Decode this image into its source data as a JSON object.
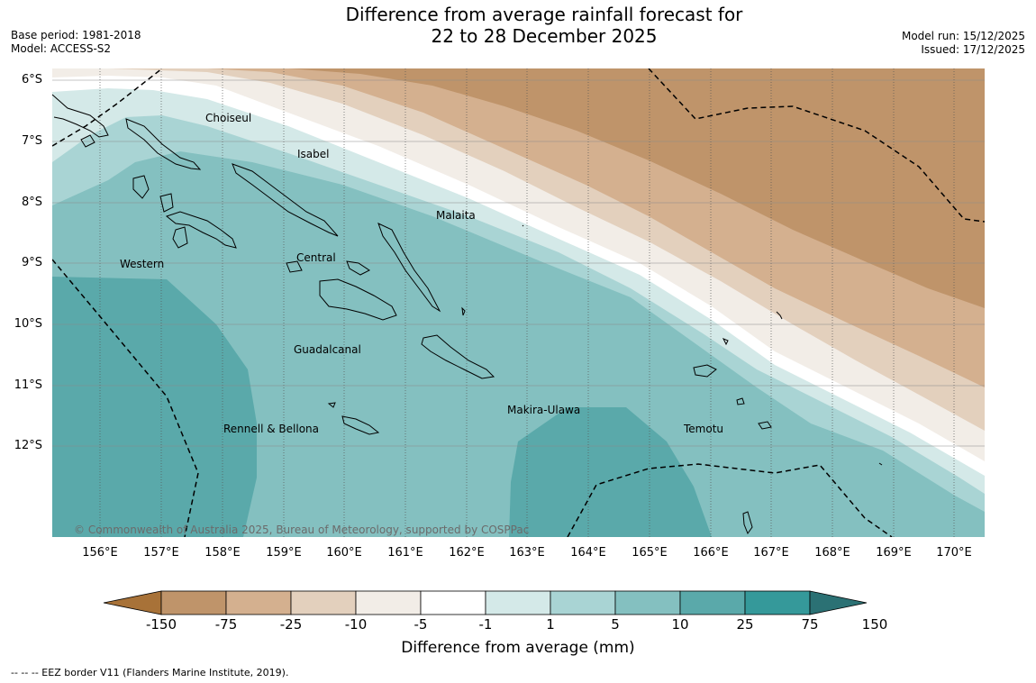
{
  "header": {
    "title_line1": "Difference from average rainfall forecast for",
    "title_line2": "22 to 28 December 2025",
    "base_period": "Base period: 1981-2018",
    "model": "Model: ACCESS-S2",
    "model_run": "Model run: 15/12/2025",
    "issued": "Issued: 17/12/2025"
  },
  "map": {
    "lat_labels": [
      "6°S",
      "7°S",
      "8°S",
      "9°S",
      "10°S",
      "11°S",
      "12°S"
    ],
    "lon_labels": [
      "156°E",
      "157°E",
      "158°E",
      "159°E",
      "160°E",
      "161°E",
      "162°E",
      "163°E",
      "164°E",
      "165°E",
      "166°E",
      "167°E",
      "168°E",
      "169°E",
      "170°E"
    ],
    "region_labels": [
      "Choiseul",
      "Isabel",
      "Malaita",
      "Western",
      "Central",
      "Guadalcanal",
      "Makira-Ulawa",
      "Rennell & Bellona",
      "Temotu"
    ],
    "copyright": "© Commonwealth of Australia 2025, Bureau of Meteorology, supported by COSPPac"
  },
  "colorbar": {
    "ticks": [
      "-150",
      "-75",
      "-25",
      "-10",
      "-5",
      "-1",
      "1",
      "5",
      "10",
      "25",
      "75",
      "150"
    ],
    "colors": [
      "#a87238",
      "#bf946a",
      "#d4b08f",
      "#e3d0bd",
      "#f2ede7",
      "#ffffff",
      "#d4e9e8",
      "#a9d4d4",
      "#84c0c0",
      "#5aa9aa",
      "#35999a",
      "#2b7174"
    ],
    "title": "Difference from average (mm)"
  },
  "footer": {
    "eez_note": "--  --  -- EEZ border V11 (Flanders Marine Institute, 2019)."
  }
}
